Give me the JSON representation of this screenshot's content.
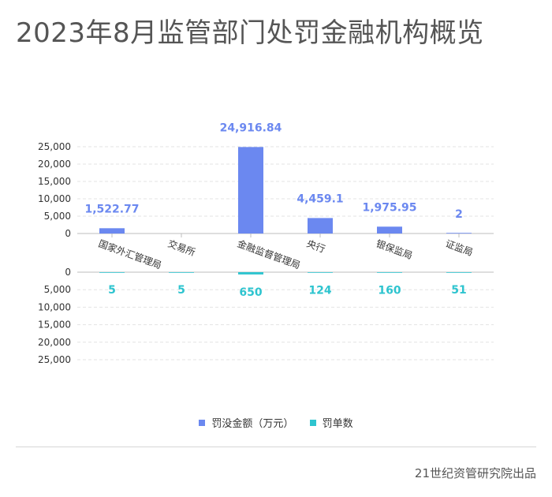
{
  "title": "2023年8月监管部门处罚金融机构概览",
  "source": "21世纪资管研究院出品",
  "colors": {
    "amount": "#6b88f0",
    "count": "#2ec4cf",
    "grid": "#e3e3e3",
    "axis": "#bdbdbd",
    "text": "#333333"
  },
  "chart_data": {
    "type": "bar",
    "categories": [
      "国家外汇管理局",
      "交易所",
      "金融监督管理局",
      "央行",
      "银保监局",
      "证监局"
    ],
    "series": [
      {
        "name": "罚没金额（万元）",
        "values": [
          1522.77,
          0,
          24916.84,
          4459.1,
          1975.95,
          2
        ],
        "labels": [
          "1,522.77",
          "",
          "24,916.84",
          "4,459.1",
          "1,975.95",
          "2"
        ]
      },
      {
        "name": "罚单数",
        "values": [
          5,
          5,
          650,
          124,
          160,
          51
        ],
        "labels": [
          "5",
          "5",
          "650",
          "124",
          "160",
          "51"
        ]
      }
    ],
    "ylim": [
      0,
      25000
    ],
    "yticks": [
      "0",
      "5,000",
      "10,000",
      "15,000",
      "20,000",
      "25,000"
    ],
    "xlabel": "",
    "ylabel": "",
    "legend": "bottom-center",
    "grid": true
  }
}
